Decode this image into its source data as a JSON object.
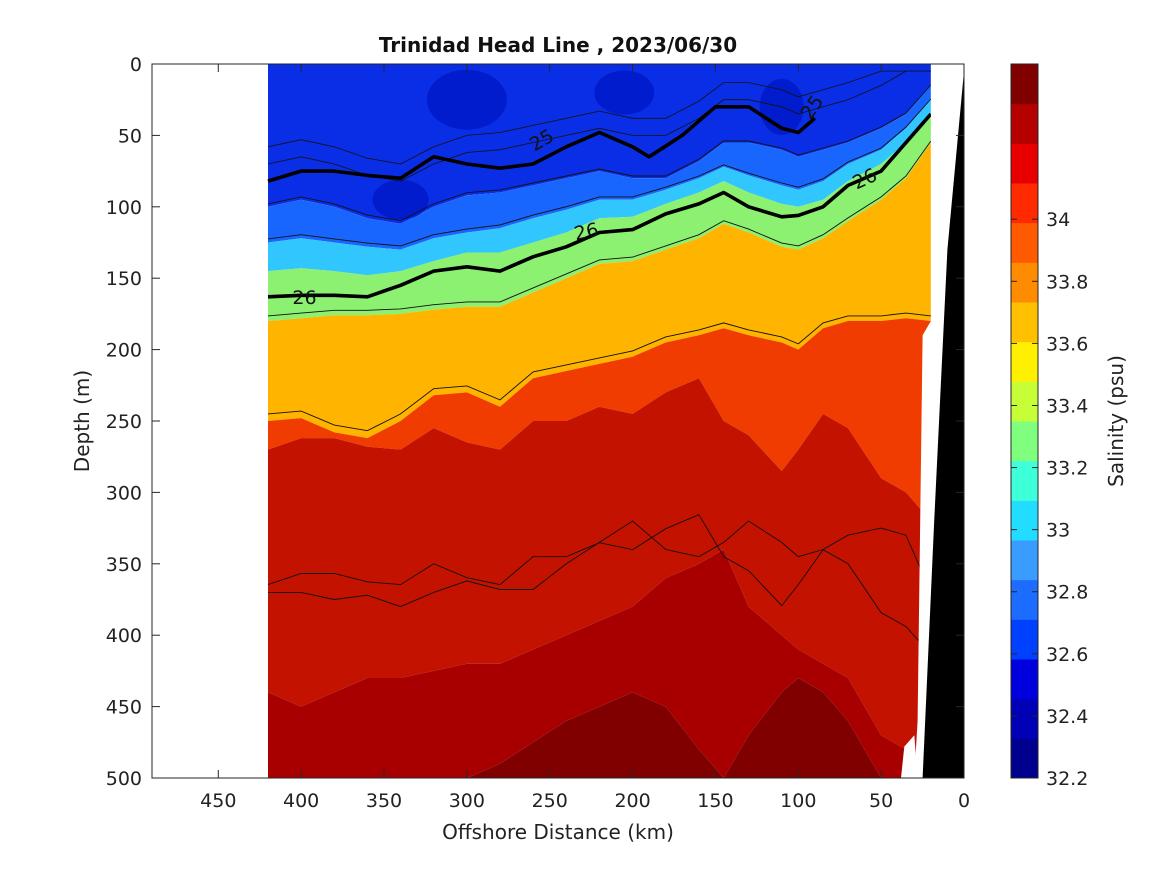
{
  "chart_data": {
    "type": "contour",
    "title": "Trinidad Head Line , 2023/06/30",
    "xlabel": "Offshore Distance (km)",
    "ylabel": "Depth (m)",
    "xlim": [
      490,
      0
    ],
    "ylim": [
      500,
      0
    ],
    "x_ticks": [
      450,
      400,
      350,
      300,
      250,
      200,
      150,
      100,
      50,
      0
    ],
    "y_ticks": [
      0,
      50,
      100,
      150,
      200,
      250,
      300,
      350,
      400,
      450,
      500
    ],
    "colorbar": {
      "label": "Salinity (psu)",
      "range": [
        32.2,
        34.5
      ],
      "ticks": [
        32.2,
        32.4,
        32.6,
        32.8,
        33,
        33.2,
        33.4,
        33.6,
        33.8,
        34
      ],
      "colors": [
        "#00008f",
        "#0000b7",
        "#0000df",
        "#0040ff",
        "#1c6cff",
        "#3a9cff",
        "#22ddff",
        "#3dffd8",
        "#80ff7f",
        "#c6ff38",
        "#ffef00",
        "#ffc000",
        "#ff8c00",
        "#ff5a00",
        "#ff2a00",
        "#e80000",
        "#b40000",
        "#800000"
      ]
    },
    "data_x_range": [
      420,
      20
    ],
    "salinity_bands": [
      {
        "label": "32.4–32.6",
        "depth_top_mean": 0,
        "depth_bottom_mean": 70
      },
      {
        "label": "32.6–33.0",
        "depth_top_mean": 70,
        "depth_bottom_mean": 110
      },
      {
        "label": "33.0–33.4",
        "depth_top_mean": 110,
        "depth_bottom_mean": 140
      },
      {
        "label": "33.4–33.8",
        "depth_top_mean": 140,
        "depth_bottom_mean": 180
      },
      {
        "label": "33.8–34.0",
        "depth_top_mean": 180,
        "depth_bottom_mean": 260
      },
      {
        "label": "34.0–34.3",
        "depth_top_mean": 260,
        "depth_bottom_mean": 460
      },
      {
        "label": ">34.3",
        "depth_top_mean": 440,
        "depth_bottom_mean": 500
      }
    ],
    "contours": [
      {
        "name": "25",
        "bold": true,
        "points": [
          [
            420,
            82
          ],
          [
            400,
            75
          ],
          [
            380,
            75
          ],
          [
            360,
            78
          ],
          [
            340,
            80
          ],
          [
            320,
            65
          ],
          [
            300,
            70
          ],
          [
            280,
            73
          ],
          [
            260,
            70
          ],
          [
            240,
            58
          ],
          [
            220,
            48
          ],
          [
            200,
            58
          ],
          [
            190,
            65
          ],
          [
            170,
            50
          ],
          [
            150,
            30
          ],
          [
            130,
            30
          ],
          [
            110,
            45
          ],
          [
            100,
            48
          ],
          [
            90,
            38
          ]
        ]
      },
      {
        "name": "26",
        "bold": true,
        "points": [
          [
            420,
            163
          ],
          [
            400,
            162
          ],
          [
            380,
            162
          ],
          [
            360,
            163
          ],
          [
            340,
            155
          ],
          [
            320,
            145
          ],
          [
            300,
            142
          ],
          [
            280,
            145
          ],
          [
            260,
            135
          ],
          [
            240,
            128
          ],
          [
            220,
            118
          ],
          [
            200,
            116
          ],
          [
            180,
            105
          ],
          [
            160,
            98
          ],
          [
            145,
            90
          ],
          [
            130,
            100
          ],
          [
            110,
            107
          ],
          [
            100,
            106
          ],
          [
            85,
            100
          ],
          [
            70,
            85
          ],
          [
            50,
            75
          ],
          [
            20,
            35
          ]
        ]
      }
    ],
    "contour_labels": [
      {
        "text": "25",
        "x": 255,
        "depth": 53,
        "rotate": -30
      },
      {
        "text": "25",
        "x": 92,
        "depth": 30,
        "rotate": -55
      },
      {
        "text": "26",
        "x": 398,
        "depth": 163,
        "rotate": 0
      },
      {
        "text": "26",
        "x": 228,
        "depth": 117,
        "rotate": -12
      },
      {
        "text": "26",
        "x": 60,
        "depth": 80,
        "rotate": -25
      }
    ]
  }
}
